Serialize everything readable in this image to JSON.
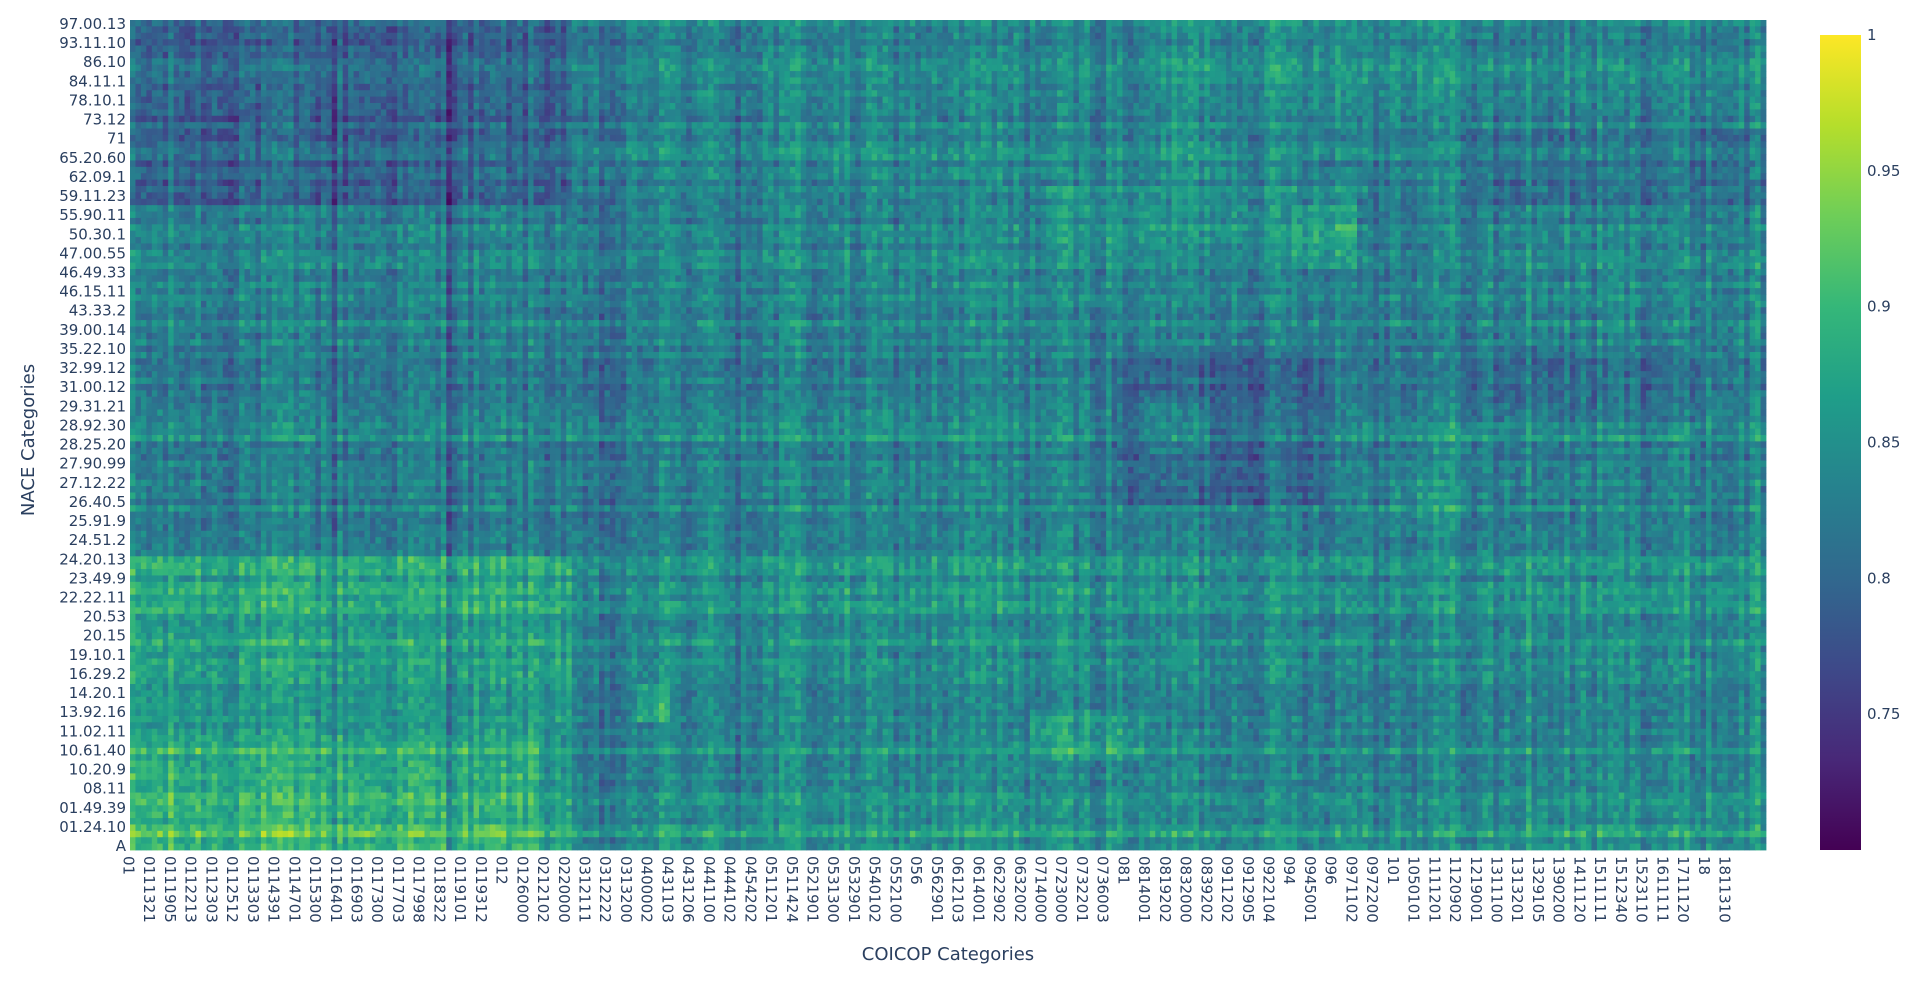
{
  "chart_data": {
    "type": "heatmap",
    "title": "",
    "xlabel": "COICOP Categories",
    "ylabel": "NACE Categories",
    "colorscale": "viridis",
    "colorscale_stops": [
      "#440154",
      "#482878",
      "#3e4989",
      "#31688e",
      "#26828e",
      "#1f9e89",
      "#35b779",
      "#6ece58",
      "#b5de2b",
      "#fde725"
    ],
    "zrange": [
      0.7,
      1.0
    ],
    "colorbar": {
      "tick_values": [
        0.75,
        0.8,
        0.85,
        0.9,
        0.95,
        1
      ],
      "tick_labels": [
        "0.75",
        "0.8",
        "0.85",
        "0.9",
        "0.95",
        "1"
      ]
    },
    "x_tick_labels": [
      "01",
      "0111321",
      "0111905",
      "0112213",
      "0112303",
      "0112512",
      "0113303",
      "0114391",
      "0114701",
      "0115300",
      "0116401",
      "0116903",
      "0117300",
      "0117703",
      "0117998",
      "0118322",
      "0119101",
      "0119312",
      "012",
      "0126000",
      "0212102",
      "0220000",
      "0312111",
      "0312222",
      "0313200",
      "0400002",
      "0431103",
      "0431206",
      "0441100",
      "0444102",
      "0454202",
      "0511201",
      "0511424",
      "0521901",
      "0531300",
      "0532901",
      "0540102",
      "0552100",
      "056",
      "0562901",
      "0612103",
      "0614001",
      "0622902",
      "0632002",
      "0714000",
      "0723000",
      "0732201",
      "0736003",
      "081",
      "0814001",
      "0819202",
      "0832000",
      "0839202",
      "0911202",
      "0912905",
      "0922104",
      "094",
      "0945001",
      "096",
      "0971102",
      "0972200",
      "101",
      "1050101",
      "1111201",
      "1120902",
      "1219001",
      "1311100",
      "1313201",
      "1329105",
      "1390200",
      "1411120",
      "1511111",
      "1512340",
      "1523110",
      "1611111",
      "1711120",
      "18",
      "1811310"
    ],
    "y_tick_labels": [
      "97.00.13",
      "93.11.10",
      "86.10",
      "84.11.1",
      "78.10.1",
      "73.12",
      "71",
      "65.20.60",
      "62.09.1",
      "59.11.23",
      "55.90.11",
      "50.30.1",
      "47.00.55",
      "46.49.33",
      "46.15.11",
      "43.33.2",
      "39.00.14",
      "35.22.10",
      "32.99.12",
      "31.00.12",
      "29.31.21",
      "28.92.30",
      "28.25.20",
      "27.90.99",
      "27.12.22",
      "26.40.5",
      "25.91.9",
      "24.51.2",
      "24.20.13",
      "23.49.9",
      "22.22.11",
      "20.53",
      "20.15",
      "19.10.1",
      "16.29.2",
      "14.20.1",
      "13.92.16",
      "11.02.11",
      "10.61.40",
      "10.20.9",
      "08.11",
      "01.49.39",
      "01.24.10",
      "A"
    ],
    "grid": false,
    "legend": "colorbar-right",
    "note_on_z": "matrix approximated procedurally"
  }
}
